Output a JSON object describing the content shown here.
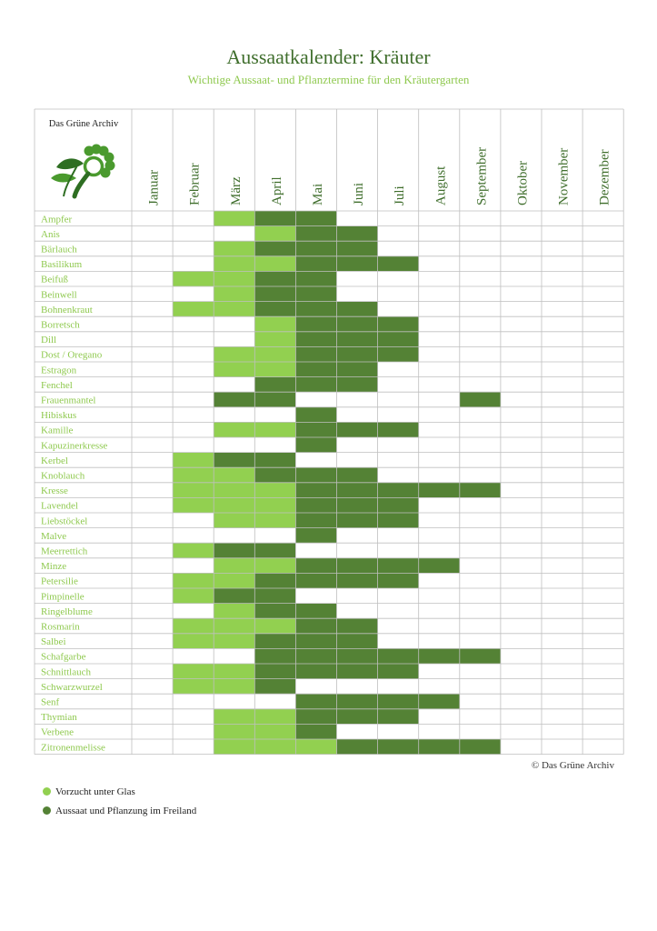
{
  "colors": {
    "vorzucht": "#92d050",
    "freiland": "#548235",
    "grid": "#bfbfbf",
    "herb_text": "#8fc94f",
    "title": "#3f6e2c"
  },
  "header": {
    "title": "Aussaatkalender: Kräuter",
    "subtitle": "Wichtige Aussaat- und Pflanztermine für den Kräutergarten"
  },
  "logo": {
    "text": "Das Grüne Archiv",
    "icon": "magnifier-leaf-icon"
  },
  "footer": {
    "copyright": "© Das Grüne Archiv"
  },
  "legend": [
    {
      "label": "Vorzucht unter Glas",
      "color": "#92d050"
    },
    {
      "label": "Aussaat und Pflanzung im Freiland",
      "color": "#548235"
    }
  ],
  "chart_data": {
    "type": "heatmap",
    "categories": [
      "Januar",
      "Februar",
      "März",
      "April",
      "Mai",
      "Juni",
      "Juli",
      "August",
      "September",
      "Oktober",
      "November",
      "Dezember"
    ],
    "value_key": {
      "0": "leer",
      "1": "Vorzucht unter Glas",
      "2": "Aussaat und Pflanzung im Freiland"
    },
    "rows": [
      {
        "name": "Ampfer",
        "values": [
          0,
          0,
          1,
          2,
          2,
          0,
          0,
          0,
          0,
          0,
          0,
          0
        ]
      },
      {
        "name": "Anis",
        "values": [
          0,
          0,
          0,
          1,
          2,
          2,
          0,
          0,
          0,
          0,
          0,
          0
        ]
      },
      {
        "name": "Bärlauch",
        "values": [
          0,
          0,
          1,
          2,
          2,
          2,
          0,
          0,
          0,
          0,
          0,
          0
        ]
      },
      {
        "name": "Basilikum",
        "values": [
          0,
          0,
          1,
          1,
          2,
          2,
          2,
          0,
          0,
          0,
          0,
          0
        ]
      },
      {
        "name": "Beifuß",
        "values": [
          0,
          1,
          1,
          2,
          2,
          0,
          0,
          0,
          0,
          0,
          0,
          0
        ]
      },
      {
        "name": "Beinwell",
        "values": [
          0,
          0,
          1,
          2,
          2,
          0,
          0,
          0,
          0,
          0,
          0,
          0
        ]
      },
      {
        "name": "Bohnenkraut",
        "values": [
          0,
          1,
          1,
          2,
          2,
          2,
          0,
          0,
          0,
          0,
          0,
          0
        ]
      },
      {
        "name": "Borretsch",
        "values": [
          0,
          0,
          0,
          1,
          2,
          2,
          2,
          0,
          0,
          0,
          0,
          0
        ]
      },
      {
        "name": "Dill",
        "values": [
          0,
          0,
          0,
          1,
          2,
          2,
          2,
          0,
          0,
          0,
          0,
          0
        ]
      },
      {
        "name": "Dost / Oregano",
        "values": [
          0,
          0,
          1,
          1,
          2,
          2,
          2,
          0,
          0,
          0,
          0,
          0
        ]
      },
      {
        "name": "Estragon",
        "values": [
          0,
          0,
          1,
          1,
          2,
          2,
          0,
          0,
          0,
          0,
          0,
          0
        ]
      },
      {
        "name": "Fenchel",
        "values": [
          0,
          0,
          0,
          2,
          2,
          2,
          0,
          0,
          0,
          0,
          0,
          0
        ]
      },
      {
        "name": "Frauenmantel",
        "values": [
          0,
          0,
          2,
          2,
          0,
          0,
          0,
          0,
          2,
          0,
          0,
          0
        ]
      },
      {
        "name": "Hibiskus",
        "values": [
          0,
          0,
          0,
          0,
          2,
          0,
          0,
          0,
          0,
          0,
          0,
          0
        ]
      },
      {
        "name": "Kamille",
        "values": [
          0,
          0,
          1,
          1,
          2,
          2,
          2,
          0,
          0,
          0,
          0,
          0
        ]
      },
      {
        "name": "Kapuzinerkresse",
        "values": [
          0,
          0,
          0,
          0,
          2,
          0,
          0,
          0,
          0,
          0,
          0,
          0
        ]
      },
      {
        "name": "Kerbel",
        "values": [
          0,
          1,
          2,
          2,
          0,
          0,
          0,
          0,
          0,
          0,
          0,
          0
        ]
      },
      {
        "name": "Knoblauch",
        "values": [
          0,
          1,
          1,
          2,
          2,
          2,
          0,
          0,
          0,
          0,
          0,
          0
        ]
      },
      {
        "name": "Kresse",
        "values": [
          0,
          1,
          1,
          1,
          2,
          2,
          2,
          2,
          2,
          0,
          0,
          0
        ]
      },
      {
        "name": "Lavendel",
        "values": [
          0,
          1,
          1,
          1,
          2,
          2,
          2,
          0,
          0,
          0,
          0,
          0
        ]
      },
      {
        "name": "Liebstöckel",
        "values": [
          0,
          0,
          1,
          1,
          2,
          2,
          2,
          0,
          0,
          0,
          0,
          0
        ]
      },
      {
        "name": "Malve",
        "values": [
          0,
          0,
          0,
          0,
          2,
          0,
          0,
          0,
          0,
          0,
          0,
          0
        ]
      },
      {
        "name": "Meerrettich",
        "values": [
          0,
          1,
          2,
          2,
          0,
          0,
          0,
          0,
          0,
          0,
          0,
          0
        ]
      },
      {
        "name": "Minze",
        "values": [
          0,
          0,
          1,
          1,
          2,
          2,
          2,
          2,
          0,
          0,
          0,
          0
        ]
      },
      {
        "name": "Petersilie",
        "values": [
          0,
          1,
          1,
          2,
          2,
          2,
          2,
          0,
          0,
          0,
          0,
          0
        ]
      },
      {
        "name": "Pimpinelle",
        "values": [
          0,
          1,
          2,
          2,
          0,
          0,
          0,
          0,
          0,
          0,
          0,
          0
        ]
      },
      {
        "name": "Ringelblume",
        "values": [
          0,
          0,
          1,
          2,
          2,
          0,
          0,
          0,
          0,
          0,
          0,
          0
        ]
      },
      {
        "name": "Rosmarin",
        "values": [
          0,
          1,
          1,
          1,
          2,
          2,
          0,
          0,
          0,
          0,
          0,
          0
        ]
      },
      {
        "name": "Salbei",
        "values": [
          0,
          1,
          1,
          2,
          2,
          2,
          0,
          0,
          0,
          0,
          0,
          0
        ]
      },
      {
        "name": "Schafgarbe",
        "values": [
          0,
          0,
          0,
          2,
          2,
          2,
          2,
          2,
          2,
          0,
          0,
          0
        ]
      },
      {
        "name": "Schnittlauch",
        "values": [
          0,
          1,
          1,
          2,
          2,
          2,
          2,
          0,
          0,
          0,
          0,
          0
        ]
      },
      {
        "name": "Schwarzwurzel",
        "values": [
          0,
          1,
          1,
          2,
          0,
          0,
          0,
          0,
          0,
          0,
          0,
          0
        ]
      },
      {
        "name": "Senf",
        "values": [
          0,
          0,
          0,
          0,
          2,
          2,
          2,
          2,
          0,
          0,
          0,
          0
        ]
      },
      {
        "name": "Thymian",
        "values": [
          0,
          0,
          1,
          1,
          2,
          2,
          2,
          0,
          0,
          0,
          0,
          0
        ]
      },
      {
        "name": "Verbene",
        "values": [
          0,
          0,
          1,
          1,
          2,
          0,
          0,
          0,
          0,
          0,
          0,
          0
        ]
      },
      {
        "name": "Zitronenmelisse",
        "values": [
          0,
          0,
          1,
          1,
          1,
          2,
          2,
          2,
          2,
          0,
          0,
          0
        ]
      }
    ]
  }
}
